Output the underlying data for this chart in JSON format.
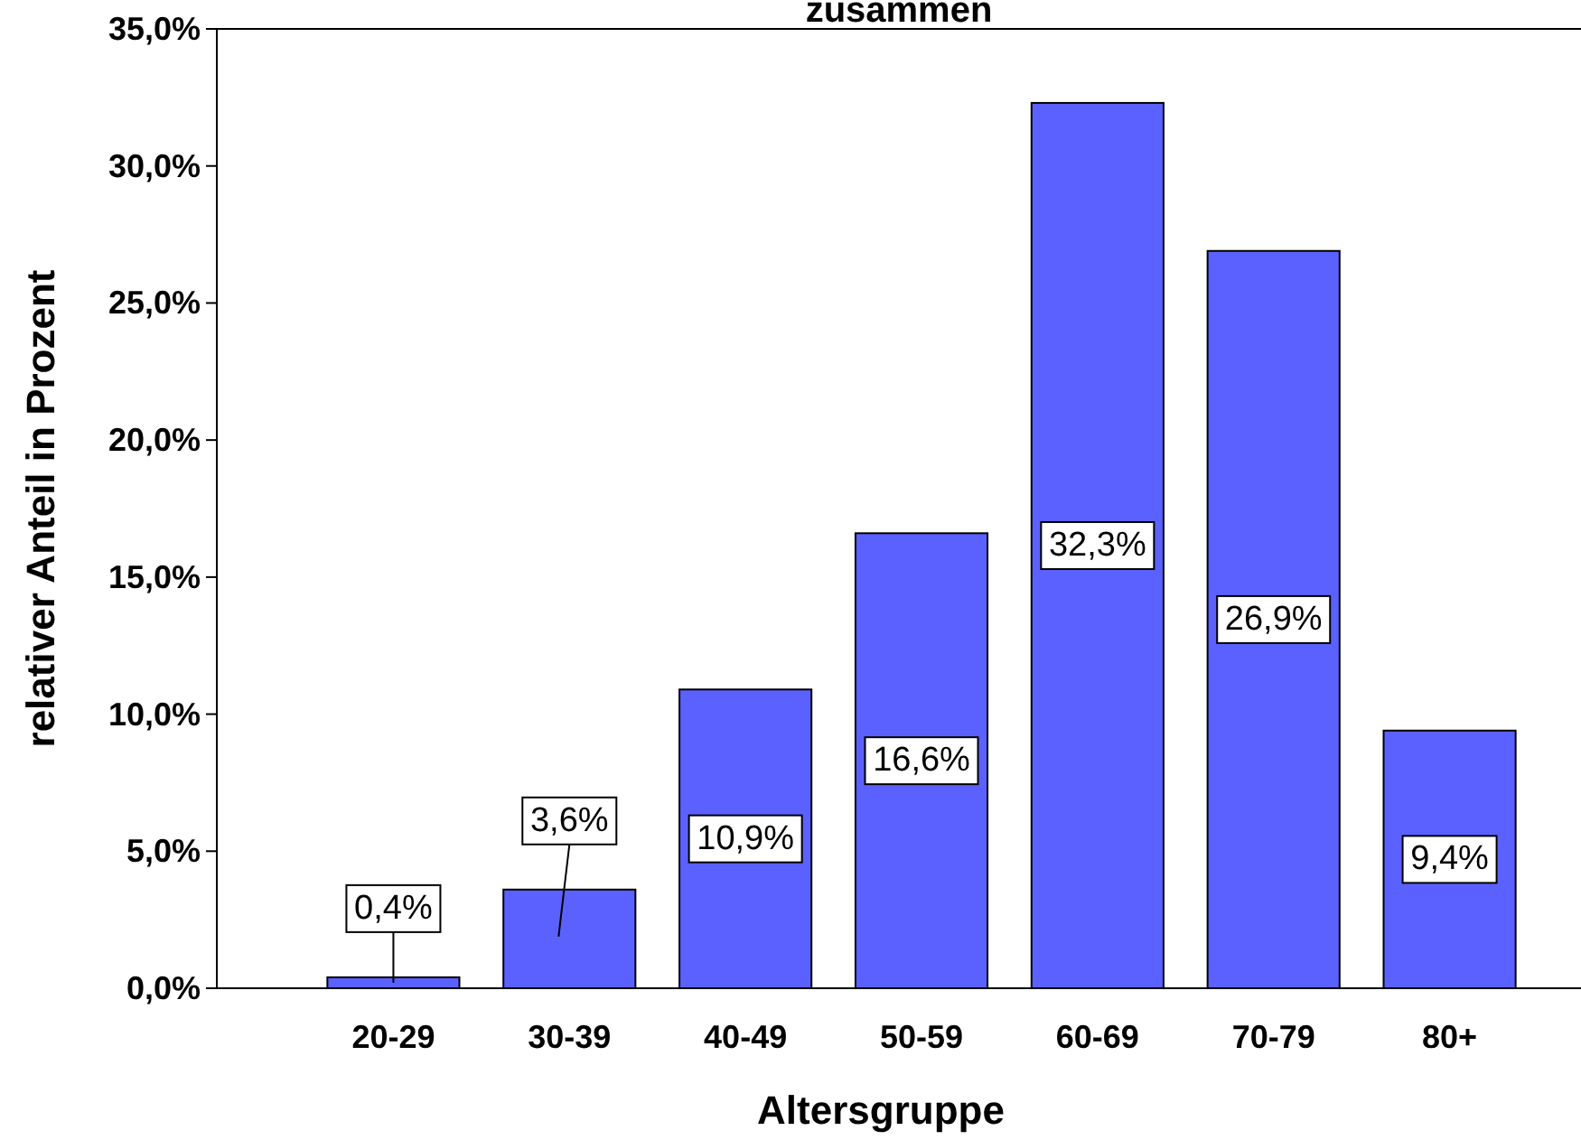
{
  "chart_data": {
    "type": "bar",
    "title": "zusammen",
    "xlabel": "Altersgruppe",
    "ylabel": "relativer Anteil in Prozent",
    "categories": [
      "20-29",
      "30-39",
      "40-49",
      "50-59",
      "60-69",
      "70-79",
      "80+"
    ],
    "values": [
      0.4,
      3.6,
      10.9,
      16.6,
      32.3,
      26.9,
      9.4
    ],
    "value_labels": [
      "0,4%",
      "3,6%",
      "10,9%",
      "16,6%",
      "32,3%",
      "26,9%",
      "9,4%"
    ],
    "color": "#5b61ff",
    "ylim": [
      0,
      35
    ],
    "yticks": [
      {
        "value": 0,
        "label": "0,0%"
      },
      {
        "value": 5,
        "label": "5,0%"
      },
      {
        "value": 10,
        "label": "10,0%"
      },
      {
        "value": 15,
        "label": "15,0%"
      },
      {
        "value": 20,
        "label": "20,0%"
      },
      {
        "value": 25,
        "label": "25,0%"
      },
      {
        "value": 30,
        "label": "30,0%"
      },
      {
        "value": 35,
        "label": "35,0%"
      }
    ],
    "grid": false
  }
}
